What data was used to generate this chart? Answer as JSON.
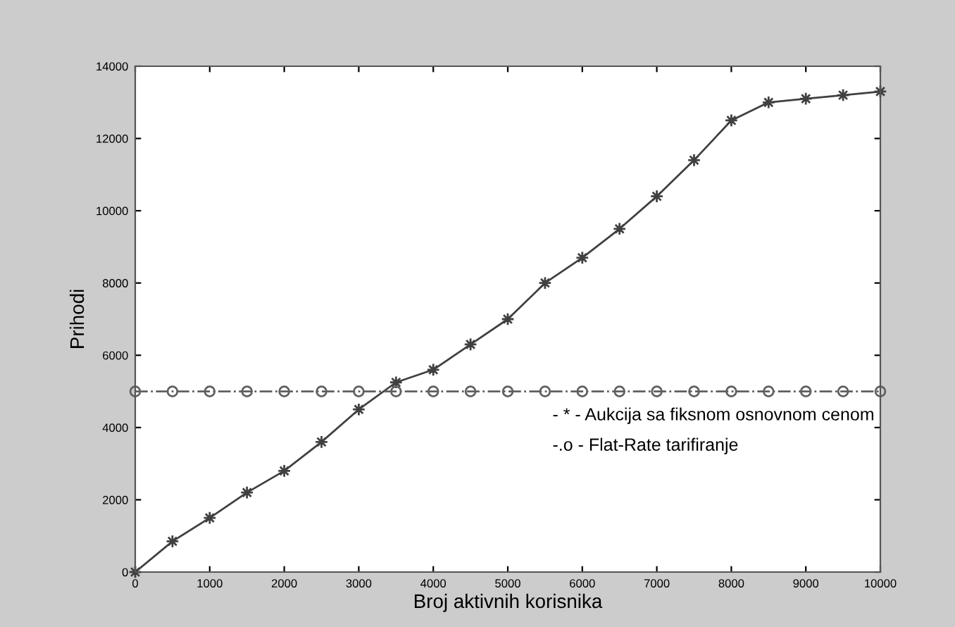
{
  "chart_data": {
    "type": "line",
    "xlabel": "Broj aktivnih korisnika",
    "ylabel": "Prihodi",
    "x": [
      0,
      500,
      1000,
      1500,
      2000,
      2500,
      3000,
      3500,
      4000,
      4500,
      5000,
      5500,
      6000,
      6500,
      7000,
      7500,
      8000,
      8500,
      9000,
      9500,
      10000
    ],
    "series": [
      {
        "color": "#404040",
        "marker": "star",
        "line_style": "solid",
        "values": [
          0,
          850,
          1500,
          2200,
          2800,
          3600,
          4500,
          5250,
          5600,
          6300,
          7000,
          8000,
          8700,
          9500,
          10400,
          11400,
          12500,
          13000,
          13100,
          13200,
          13300
        ]
      },
      {
        "color": "#606060",
        "marker": "circle",
        "line_style": "dashdot",
        "values": [
          5000,
          5000,
          5000,
          5000,
          5000,
          5000,
          5000,
          5000,
          5000,
          5000,
          5000,
          5000,
          5000,
          5000,
          5000,
          5000,
          5000,
          5000,
          5000,
          5000,
          5000
        ]
      }
    ],
    "annotations": [
      "- * - Aukcija sa fiksnom osnovnom cenom",
      "-.o - Flat-Rate tarifiranje"
    ],
    "xlim": [
      0,
      10000
    ],
    "ylim": [
      0,
      14000
    ],
    "xticks": [
      0,
      1000,
      2000,
      3000,
      4000,
      5000,
      6000,
      7000,
      8000,
      9000,
      10000
    ],
    "yticks": [
      0,
      2000,
      4000,
      6000,
      8000,
      10000,
      12000,
      14000
    ],
    "grid": false,
    "legend": false
  }
}
